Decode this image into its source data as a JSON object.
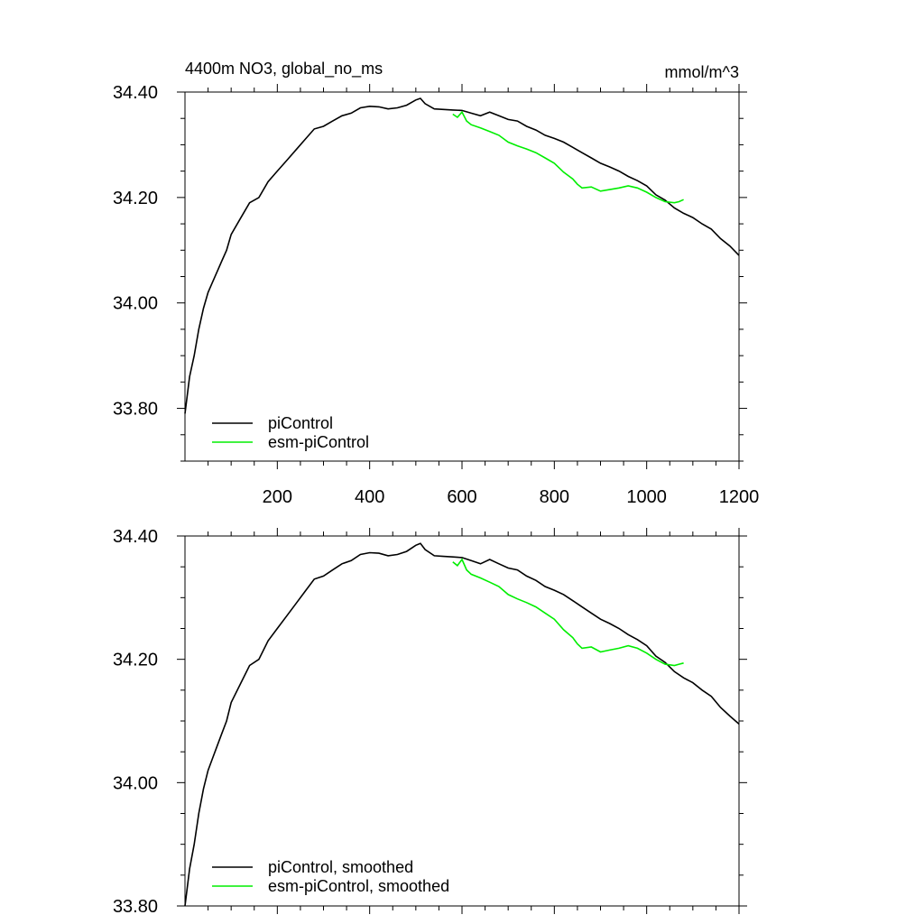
{
  "chart_data": [
    {
      "type": "line",
      "title": "4400m NO3, global_no_ms",
      "units": "mmol/m^3",
      "xlim": [
        0,
        1200
      ],
      "ylim": [
        33.7,
        34.4
      ],
      "x_tick_values": [
        200,
        400,
        600,
        800,
        1000,
        1200
      ],
      "x_tick_labels": [
        "200",
        "400",
        "600",
        "800",
        "1000",
        "1200"
      ],
      "y_tick_values": [
        33.8,
        34.0,
        34.2,
        34.4
      ],
      "y_tick_labels": [
        "33.80",
        "34.00",
        "34.20",
        "34.40"
      ],
      "legend_position": "bottom-left",
      "series": [
        {
          "name": "piControl",
          "color": "#000000",
          "x": [
            0,
            10,
            20,
            30,
            40,
            50,
            60,
            70,
            80,
            90,
            100,
            120,
            140,
            160,
            180,
            200,
            220,
            240,
            260,
            280,
            300,
            320,
            340,
            360,
            380,
            400,
            420,
            440,
            460,
            480,
            500,
            510,
            520,
            540,
            560,
            580,
            600,
            620,
            640,
            660,
            680,
            700,
            720,
            740,
            760,
            780,
            800,
            820,
            840,
            860,
            880,
            900,
            920,
            940,
            960,
            980,
            1000,
            1020,
            1040,
            1060,
            1080,
            1100,
            1120,
            1140,
            1160,
            1180,
            1200
          ],
          "y": [
            33.79,
            33.86,
            33.9,
            33.95,
            33.99,
            34.02,
            34.04,
            34.06,
            34.08,
            34.1,
            34.13,
            34.16,
            34.19,
            34.2,
            34.23,
            34.25,
            34.27,
            34.29,
            34.31,
            34.33,
            34.335,
            34.345,
            34.355,
            34.36,
            34.37,
            34.373,
            34.372,
            34.368,
            34.37,
            34.375,
            34.385,
            34.388,
            34.378,
            34.368,
            34.367,
            34.366,
            34.365,
            34.36,
            34.355,
            34.362,
            34.355,
            34.348,
            34.345,
            34.335,
            34.328,
            34.318,
            34.312,
            34.305,
            34.295,
            34.285,
            34.275,
            34.265,
            34.258,
            34.25,
            34.24,
            34.232,
            34.222,
            34.205,
            34.195,
            34.18,
            34.17,
            34.162,
            34.15,
            34.14,
            34.122,
            34.108,
            34.09
          ]
        },
        {
          "name": "esm-piControl",
          "color": "#00ee00",
          "x": [
            580,
            590,
            600,
            610,
            620,
            640,
            660,
            680,
            700,
            720,
            740,
            760,
            780,
            800,
            820,
            840,
            850,
            860,
            880,
            900,
            920,
            940,
            960,
            980,
            1000,
            1020,
            1040,
            1060,
            1070,
            1080
          ],
          "y": [
            34.358,
            34.352,
            34.362,
            34.345,
            34.338,
            34.332,
            34.325,
            34.318,
            34.305,
            34.298,
            34.292,
            34.285,
            34.275,
            34.265,
            34.248,
            34.235,
            34.225,
            34.218,
            34.22,
            34.212,
            34.215,
            34.218,
            34.222,
            34.218,
            34.21,
            34.2,
            34.192,
            34.19,
            34.192,
            34.196
          ]
        }
      ]
    },
    {
      "type": "line",
      "title": "",
      "xlim": [
        0,
        1200
      ],
      "ylim": [
        33.8,
        34.4
      ],
      "x_tick_values": [
        200,
        400,
        600,
        800,
        1000,
        1200
      ],
      "y_tick_values": [
        33.8,
        34.0,
        34.2,
        34.4
      ],
      "y_tick_labels": [
        "33.80",
        "34.00",
        "34.20",
        "34.40"
      ],
      "legend_position": "bottom-left",
      "series": [
        {
          "name": "piControl, smoothed",
          "color": "#000000",
          "x": [
            0,
            10,
            20,
            30,
            40,
            50,
            60,
            70,
            80,
            90,
            100,
            120,
            140,
            160,
            180,
            200,
            220,
            240,
            260,
            280,
            300,
            320,
            340,
            360,
            380,
            400,
            420,
            440,
            460,
            480,
            500,
            510,
            520,
            540,
            560,
            580,
            600,
            620,
            640,
            660,
            680,
            700,
            720,
            740,
            760,
            780,
            800,
            820,
            840,
            860,
            880,
            900,
            920,
            940,
            960,
            980,
            1000,
            1020,
            1040,
            1060,
            1080,
            1100,
            1120,
            1140,
            1160,
            1180,
            1200
          ],
          "y": [
            33.79,
            33.86,
            33.9,
            33.95,
            33.99,
            34.02,
            34.04,
            34.06,
            34.08,
            34.1,
            34.13,
            34.16,
            34.19,
            34.2,
            34.23,
            34.25,
            34.27,
            34.29,
            34.31,
            34.33,
            34.335,
            34.345,
            34.355,
            34.36,
            34.37,
            34.373,
            34.372,
            34.368,
            34.37,
            34.375,
            34.385,
            34.388,
            34.378,
            34.368,
            34.367,
            34.366,
            34.365,
            34.36,
            34.355,
            34.362,
            34.355,
            34.348,
            34.345,
            34.335,
            34.328,
            34.318,
            34.312,
            34.305,
            34.295,
            34.285,
            34.275,
            34.265,
            34.258,
            34.25,
            34.24,
            34.232,
            34.222,
            34.205,
            34.195,
            34.18,
            34.17,
            34.162,
            34.15,
            34.14,
            34.122,
            34.108,
            34.095
          ]
        },
        {
          "name": "esm-piControl, smoothed",
          "color": "#00ee00",
          "x": [
            580,
            590,
            600,
            610,
            620,
            640,
            660,
            680,
            700,
            720,
            740,
            760,
            780,
            800,
            820,
            840,
            850,
            860,
            880,
            900,
            920,
            940,
            960,
            980,
            1000,
            1020,
            1040,
            1060,
            1070,
            1080
          ],
          "y": [
            34.358,
            34.352,
            34.362,
            34.345,
            34.338,
            34.332,
            34.325,
            34.318,
            34.305,
            34.298,
            34.292,
            34.285,
            34.275,
            34.265,
            34.248,
            34.235,
            34.225,
            34.218,
            34.22,
            34.212,
            34.215,
            34.218,
            34.222,
            34.218,
            34.21,
            34.2,
            34.192,
            34.19,
            34.192,
            34.194
          ]
        }
      ]
    }
  ]
}
